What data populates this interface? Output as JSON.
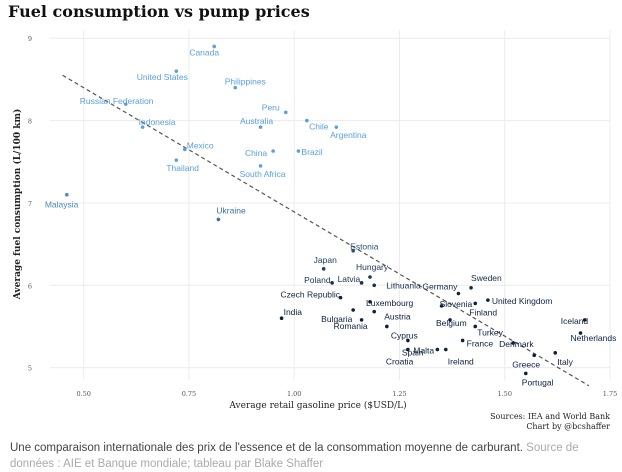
{
  "title": "Fuel consumption vs pump prices",
  "caption": {
    "text": "Une comparaison internationale des prix de l'essence et de la consommation moyenne de carburant.",
    "credit": "Source de données : AIE et Banque mondiale; tableau par Blake Shaffer"
  },
  "sources": {
    "line1": "Sources: IEA and World Bank",
    "line2": "Chart by @bcshaffer"
  },
  "colors": {
    "high": "#5aa0dc",
    "low": "#0d1f3c",
    "trend": "#555555",
    "grid": "#ececec"
  },
  "chart_data": {
    "type": "scatter",
    "title": "Fuel consumption vs pump prices",
    "xlabel": "Average retail gasoline price ($USD/L)",
    "ylabel": "Average fuel consumption (L/100 km)",
    "xlim": [
      0.42,
      1.75
    ],
    "ylim": [
      4.85,
      9.1
    ],
    "xticks": [
      "0.50",
      "0.75",
      "1.00",
      "1.25",
      "1.50",
      "1.75"
    ],
    "xtick_values": [
      0.5,
      0.75,
      1.0,
      1.25,
      1.5,
      1.75
    ],
    "yticks": [
      "5",
      "6",
      "7",
      "8",
      "9"
    ],
    "ytick_values": [
      5,
      6,
      7,
      8,
      9
    ],
    "grid": true,
    "trendline": {
      "x": [
        0.45,
        1.7
      ],
      "y": [
        8.55,
        4.78
      ]
    },
    "points": [
      {
        "name": "Canada",
        "x": 0.81,
        "y": 8.9
      },
      {
        "name": "United States",
        "x": 0.72,
        "y": 8.6
      },
      {
        "name": "Philippines",
        "x": 0.86,
        "y": 8.4
      },
      {
        "name": "Russian Federation",
        "x": 0.6,
        "y": 8.2
      },
      {
        "name": "Peru",
        "x": 0.98,
        "y": 8.1
      },
      {
        "name": "Australia",
        "x": 0.92,
        "y": 7.92
      },
      {
        "name": "Chile",
        "x": 1.03,
        "y": 8.0
      },
      {
        "name": "Argentina",
        "x": 1.1,
        "y": 7.92
      },
      {
        "name": "Indonesia",
        "x": 0.64,
        "y": 7.92
      },
      {
        "name": "Mexico",
        "x": 0.74,
        "y": 7.65
      },
      {
        "name": "China",
        "x": 0.95,
        "y": 7.63
      },
      {
        "name": "Brazil",
        "x": 1.01,
        "y": 7.63
      },
      {
        "name": "Thailand",
        "x": 0.72,
        "y": 7.52
      },
      {
        "name": "South Africa",
        "x": 0.92,
        "y": 7.45
      },
      {
        "name": "Malaysia",
        "x": 0.46,
        "y": 7.1
      },
      {
        "name": "Ukraine",
        "x": 0.82,
        "y": 6.8
      },
      {
        "name": "Estonia",
        "x": 1.14,
        "y": 6.42
      },
      {
        "name": "Japan",
        "x": 1.07,
        "y": 6.2
      },
      {
        "name": "Hungary",
        "x": 1.18,
        "y": 6.1
      },
      {
        "name": "Latvia",
        "x": 1.16,
        "y": 6.03
      },
      {
        "name": "Poland",
        "x": 1.09,
        "y": 6.03
      },
      {
        "name": "Lithuania",
        "x": 1.19,
        "y": 6.0
      },
      {
        "name": "Sweden",
        "x": 1.42,
        "y": 5.97
      },
      {
        "name": "Germany",
        "x": 1.39,
        "y": 5.9
      },
      {
        "name": "United Kingdom",
        "x": 1.46,
        "y": 5.82
      },
      {
        "name": "Czech Republic",
        "x": 1.11,
        "y": 5.85
      },
      {
        "name": "Luxembourg",
        "x": 1.18,
        "y": 5.8
      },
      {
        "name": "Slovenia",
        "x": 1.35,
        "y": 5.75
      },
      {
        "name": "Finland",
        "x": 1.43,
        "y": 5.78
      },
      {
        "name": "Bulgaria",
        "x": 1.14,
        "y": 5.7
      },
      {
        "name": "Austria",
        "x": 1.19,
        "y": 5.68
      },
      {
        "name": "India",
        "x": 0.97,
        "y": 5.6
      },
      {
        "name": "Romania",
        "x": 1.16,
        "y": 5.58
      },
      {
        "name": "Belgium",
        "x": 1.37,
        "y": 5.58
      },
      {
        "name": "Iceland",
        "x": 1.69,
        "y": 5.58
      },
      {
        "name": "Cyprus",
        "x": 1.22,
        "y": 5.5
      },
      {
        "name": "Turkey",
        "x": 1.43,
        "y": 5.5
      },
      {
        "name": "Netherlands",
        "x": 1.68,
        "y": 5.42
      },
      {
        "name": "Spain",
        "x": 1.27,
        "y": 5.33
      },
      {
        "name": "France",
        "x": 1.4,
        "y": 5.33
      },
      {
        "name": "Denmark",
        "x": 1.52,
        "y": 5.3
      },
      {
        "name": "Malta",
        "x": 1.34,
        "y": 5.22
      },
      {
        "name": "Ireland",
        "x": 1.36,
        "y": 5.22
      },
      {
        "name": "Croatia",
        "x": 1.27,
        "y": 5.22
      },
      {
        "name": "Italy",
        "x": 1.62,
        "y": 5.18
      },
      {
        "name": "Greece",
        "x": 1.57,
        "y": 5.15
      },
      {
        "name": "Portugal",
        "x": 1.55,
        "y": 4.93
      }
    ]
  }
}
